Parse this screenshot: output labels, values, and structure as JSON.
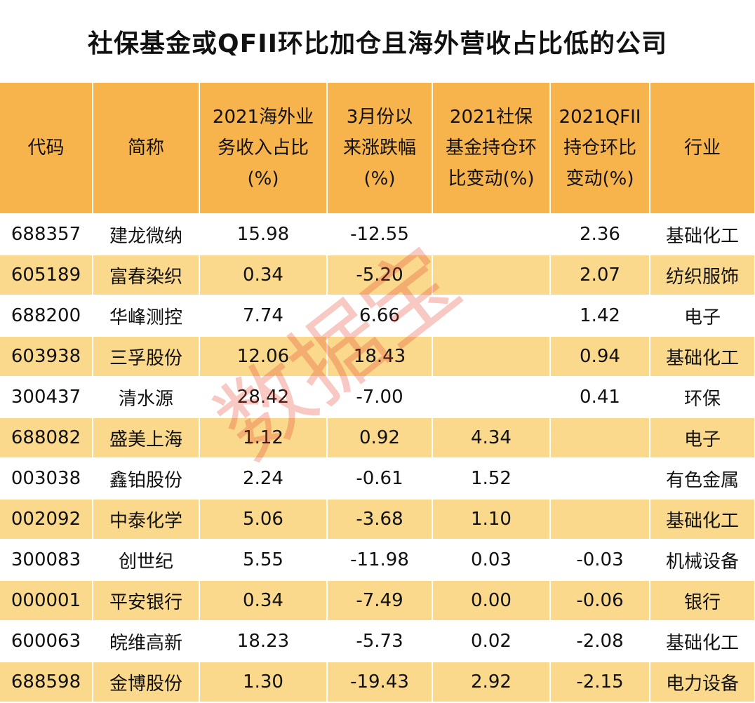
{
  "title": "社保基金或QFII环比加仓且海外营收占比低的公司",
  "watermark": "数据宝",
  "colors": {
    "header_bg": "#f7b44c",
    "stripe_bg": "#fad98c",
    "watermark": "#e63c28"
  },
  "chart_data": {
    "type": "table",
    "columns": [
      "代码",
      "简称",
      "2021海外业务收入占比(%)",
      "3月份以来涨跌幅(%)",
      "2021社保基金持仓环比变动(%)",
      "2021QFII持仓环比变动(%)",
      "行业"
    ],
    "header_lines": [
      [
        "代码"
      ],
      [
        "简称"
      ],
      [
        "2021海外业",
        "务收入占比",
        "(%)"
      ],
      [
        "3月份以",
        "来涨跌幅",
        "(%)"
      ],
      [
        "2021社保",
        "基金持仓环",
        "比变动(%)"
      ],
      [
        "2021QFII",
        "持仓环比",
        "变动(%)"
      ],
      [
        "行业"
      ]
    ],
    "rows": [
      [
        "688357",
        "建龙微纳",
        "15.98",
        "-12.55",
        "",
        "2.36",
        "基础化工"
      ],
      [
        "605189",
        "富春染织",
        "0.34",
        "-5.20",
        "",
        "2.07",
        "纺织服饰"
      ],
      [
        "688200",
        "华峰测控",
        "7.74",
        "6.66",
        "",
        "1.42",
        "电子"
      ],
      [
        "603938",
        "三孚股份",
        "12.06",
        "18.43",
        "",
        "0.94",
        "基础化工"
      ],
      [
        "300437",
        "清水源",
        "28.42",
        "-7.00",
        "",
        "0.41",
        "环保"
      ],
      [
        "688082",
        "盛美上海",
        "1.12",
        "0.92",
        "4.34",
        "",
        "电子"
      ],
      [
        "003038",
        "鑫铂股份",
        "2.24",
        "-0.61",
        "1.52",
        "",
        "有色金属"
      ],
      [
        "002092",
        "中泰化学",
        "5.06",
        "-3.68",
        "1.10",
        "",
        "基础化工"
      ],
      [
        "300083",
        "创世纪",
        "5.55",
        "-11.98",
        "0.03",
        "-0.03",
        "机械设备"
      ],
      [
        "000001",
        "平安银行",
        "0.34",
        "-7.49",
        "0.00",
        "-0.06",
        "银行"
      ],
      [
        "600063",
        "皖维高新",
        "18.23",
        "-5.73",
        "0.02",
        "-2.08",
        "基础化工"
      ],
      [
        "688598",
        "金博股份",
        "1.30",
        "-19.43",
        "2.92",
        "-2.15",
        "电力设备"
      ]
    ]
  }
}
